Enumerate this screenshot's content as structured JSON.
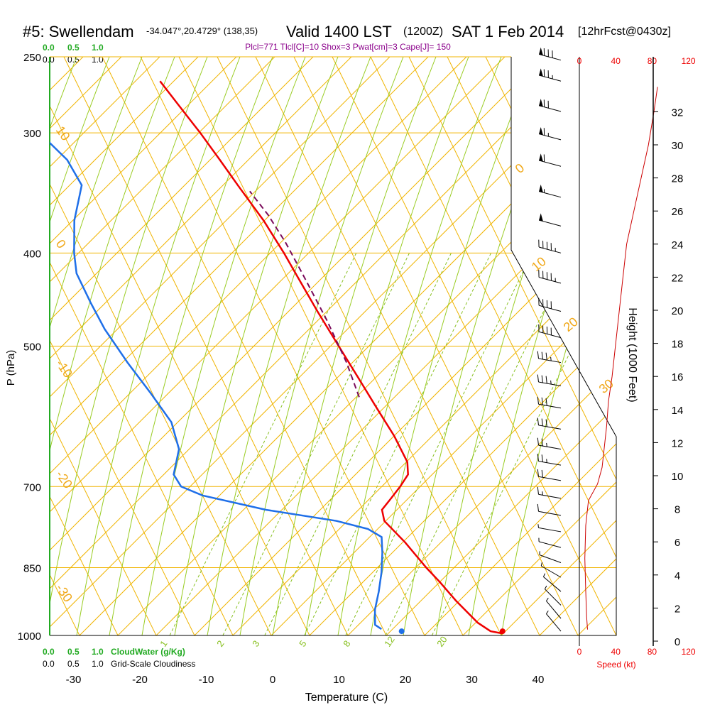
{
  "header": {
    "station": "#5: Swellendam",
    "coords": "-34.047°,20.4729° (138,35)",
    "valid": "Valid 1400 LST",
    "zulu": "(1200Z)",
    "date": "SAT 1 Feb 2014",
    "forecast": "[12hrFcst@0430z]",
    "indices": "Plcl=771 Tlcl[C]=10 Shox=3 Pwat[cm]=3 Cape[J]= 150"
  },
  "colors": {
    "temperature": "#ee0000",
    "dewpoint": "#1f6fe8",
    "parcel": "#7a0a5a",
    "isobar": "#f0b400",
    "dry_adiabat": "#f0b400",
    "moist_adiabat": "#99cc22",
    "mixing_ratio": "#88c020",
    "cloud": "#22aa22",
    "wind_speed": "#cc0000"
  },
  "cloud_scale": {
    "top_green": [
      "0.0",
      "0.5",
      "1.0"
    ],
    "top_black": [
      "0.0",
      "0.5",
      "1.0"
    ],
    "bottom_green": [
      "0.0",
      "0.5",
      "1.0"
    ],
    "bottom_green_label": "CloudWater (g/Kg)",
    "bottom_black": [
      "0.0",
      "0.5",
      "1.0"
    ],
    "bottom_black_label": "Grid-Scale Cloudiness"
  },
  "chart_data": {
    "type": "line",
    "title": "#5: Swellendam",
    "xlabel": "Temperature (C)",
    "ylabel": "P (hPa)",
    "xlim": [
      -35,
      48
    ],
    "ylim": [
      1000,
      250
    ],
    "log_pressure_axis": true,
    "skew": true,
    "x_ticks": [
      -30,
      -20,
      -10,
      0,
      10,
      20,
      30,
      40
    ],
    "pressure_ticks": [
      250,
      300,
      400,
      500,
      700,
      850,
      1000
    ],
    "dry_adiabat_labels": [
      "10",
      "0",
      "-10",
      "-20",
      "-30",
      "0",
      "10",
      "20",
      "30"
    ],
    "mixing_ratio_labels": [
      "1",
      "2",
      "3",
      "5",
      "8",
      "12",
      "20"
    ],
    "series": [
      {
        "name": "Temperature",
        "points": [
          {
            "p": 995,
            "t": 34.5
          },
          {
            "p": 990,
            "t": 32.7
          },
          {
            "p": 970,
            "t": 30.5
          },
          {
            "p": 920,
            "t": 26.5
          },
          {
            "p": 880,
            "t": 23.5
          },
          {
            "p": 850,
            "t": 21.0
          },
          {
            "p": 800,
            "t": 17.0
          },
          {
            "p": 760,
            "t": 13.2
          },
          {
            "p": 740,
            "t": 12.5
          },
          {
            "p": 720,
            "t": 13.5
          },
          {
            "p": 700,
            "t": 14.5
          },
          {
            "p": 680,
            "t": 15.3
          },
          {
            "p": 660,
            "t": 14.8
          },
          {
            "p": 620,
            "t": 12.0
          },
          {
            "p": 580,
            "t": 8.5
          },
          {
            "p": 540,
            "t": 4.8
          },
          {
            "p": 500,
            "t": 0.8
          },
          {
            "p": 460,
            "t": -3.5
          },
          {
            "p": 420,
            "t": -8.0
          },
          {
            "p": 400,
            "t": -10.4
          },
          {
            "p": 370,
            "t": -14.5
          },
          {
            "p": 340,
            "t": -19.5
          },
          {
            "p": 320,
            "t": -23.0
          },
          {
            "p": 300,
            "t": -26.8
          },
          {
            "p": 285,
            "t": -30.0
          },
          {
            "p": 265,
            "t": -34.5
          }
        ]
      },
      {
        "name": "Dew point",
        "points": [
          {
            "p": 985,
            "t": 16.2
          },
          {
            "p": 975,
            "t": 15.1
          },
          {
            "p": 940,
            "t": 14.6
          },
          {
            "p": 900,
            "t": 14.6
          },
          {
            "p": 860,
            "t": 14.4
          },
          {
            "p": 820,
            "t": 13.9
          },
          {
            "p": 790,
            "t": 13.3
          },
          {
            "p": 775,
            "t": 11.0
          },
          {
            "p": 760,
            "t": 6.0
          },
          {
            "p": 740,
            "t": -5.0
          },
          {
            "p": 715,
            "t": -15.0
          },
          {
            "p": 700,
            "t": -18.5
          },
          {
            "p": 680,
            "t": -20.0
          },
          {
            "p": 640,
            "t": -20.0
          },
          {
            "p": 600,
            "t": -22.0
          },
          {
            "p": 560,
            "t": -26.0
          },
          {
            "p": 520,
            "t": -30.5
          },
          {
            "p": 480,
            "t": -35.0
          },
          {
            "p": 450,
            "t": -38.0
          },
          {
            "p": 420,
            "t": -41.0
          },
          {
            "p": 400,
            "t": -42.0
          },
          {
            "p": 370,
            "t": -43.0
          },
          {
            "p": 350,
            "t": -43.0
          },
          {
            "p": 340,
            "t": -43.0
          },
          {
            "p": 320,
            "t": -46.0
          },
          {
            "p": 300,
            "t": -51.0
          },
          {
            "p": 260,
            "t": -65.0
          }
        ]
      },
      {
        "name": "Parcel",
        "points": [
          {
            "p": 565,
            "t": 5.5
          },
          {
            "p": 520,
            "t": 2.5
          },
          {
            "p": 470,
            "t": -1.8
          },
          {
            "p": 420,
            "t": -7.0
          },
          {
            "p": 390,
            "t": -10.5
          },
          {
            "p": 365,
            "t": -14.0
          },
          {
            "p": 345,
            "t": -17.5
          }
        ]
      }
    ],
    "surface_markers": [
      {
        "name": "Temperature",
        "p": 990,
        "t": 34.5
      },
      {
        "name": "Dew point",
        "p": 990,
        "t": 19.3
      }
    ],
    "height_axis": {
      "label": "Height (1000 Feet)",
      "ticks_kft": [
        0,
        2,
        4,
        6,
        8,
        10,
        12,
        14,
        16,
        18,
        20,
        22,
        24,
        26,
        28,
        30,
        32
      ]
    },
    "wind_speed_axis": {
      "label": "Speed (kt)",
      "ticks_kt": [
        0,
        40,
        80,
        120
      ],
      "profile": [
        {
          "h_kft": 0.7,
          "kt": 9
        },
        {
          "h_kft": 1.5,
          "kt": 8
        },
        {
          "h_kft": 3.0,
          "kt": 7
        },
        {
          "h_kft": 5.0,
          "kt": 6
        },
        {
          "h_kft": 7.0,
          "kt": 7
        },
        {
          "h_kft": 8.5,
          "kt": 10
        },
        {
          "h_kft": 9.5,
          "kt": 20
        },
        {
          "h_kft": 10.5,
          "kt": 25
        },
        {
          "h_kft": 11.5,
          "kt": 27
        },
        {
          "h_kft": 13.0,
          "kt": 30
        },
        {
          "h_kft": 14.5,
          "kt": 32
        },
        {
          "h_kft": 16.0,
          "kt": 36
        },
        {
          "h_kft": 18.0,
          "kt": 40
        },
        {
          "h_kft": 20.0,
          "kt": 44
        },
        {
          "h_kft": 22.0,
          "kt": 48
        },
        {
          "h_kft": 24.0,
          "kt": 52
        },
        {
          "h_kft": 26.0,
          "kt": 60
        },
        {
          "h_kft": 28.0,
          "kt": 68
        },
        {
          "h_kft": 30.0,
          "kt": 76
        },
        {
          "h_kft": 32.0,
          "kt": 82
        },
        {
          "h_kft": 33.5,
          "kt": 86
        }
      ]
    },
    "wind_barbs": [
      {
        "p": 990,
        "dir": 320,
        "kt": 9
      },
      {
        "p": 960,
        "dir": 320,
        "kt": 9
      },
      {
        "p": 930,
        "dir": 315,
        "kt": 8
      },
      {
        "p": 900,
        "dir": 310,
        "kt": 7
      },
      {
        "p": 870,
        "dir": 300,
        "kt": 6
      },
      {
        "p": 840,
        "dir": 290,
        "kt": 6
      },
      {
        "p": 810,
        "dir": 285,
        "kt": 7
      },
      {
        "p": 780,
        "dir": 280,
        "kt": 8
      },
      {
        "p": 750,
        "dir": 280,
        "kt": 10
      },
      {
        "p": 720,
        "dir": 280,
        "kt": 15
      },
      {
        "p": 690,
        "dir": 280,
        "kt": 20
      },
      {
        "p": 665,
        "dir": 280,
        "kt": 25
      },
      {
        "p": 640,
        "dir": 280,
        "kt": 27
      },
      {
        "p": 610,
        "dir": 280,
        "kt": 30
      },
      {
        "p": 580,
        "dir": 280,
        "kt": 32
      },
      {
        "p": 550,
        "dir": 280,
        "kt": 35
      },
      {
        "p": 520,
        "dir": 280,
        "kt": 35
      },
      {
        "p": 490,
        "dir": 285,
        "kt": 40
      },
      {
        "p": 460,
        "dir": 285,
        "kt": 40
      },
      {
        "p": 430,
        "dir": 285,
        "kt": 45
      },
      {
        "p": 400,
        "dir": 285,
        "kt": 45
      },
      {
        "p": 375,
        "dir": 285,
        "kt": 50
      },
      {
        "p": 350,
        "dir": 285,
        "kt": 55
      },
      {
        "p": 325,
        "dir": 285,
        "kt": 60
      },
      {
        "p": 305,
        "dir": 285,
        "kt": 65
      },
      {
        "p": 285,
        "dir": 285,
        "kt": 70
      },
      {
        "p": 265,
        "dir": 285,
        "kt": 75
      },
      {
        "p": 252,
        "dir": 285,
        "kt": 80
      }
    ]
  }
}
